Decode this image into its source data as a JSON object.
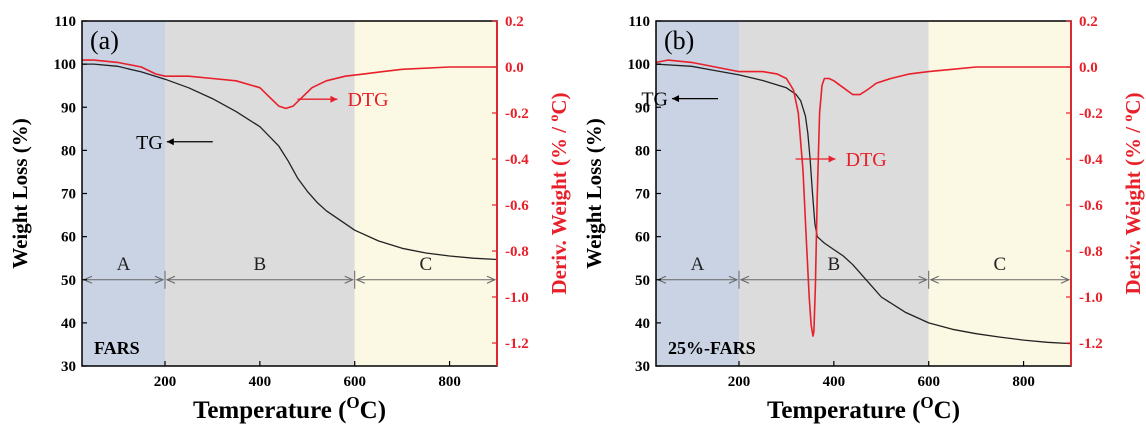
{
  "colors": {
    "tg": "#222222",
    "dtg": "#e8202a",
    "region_a": "#c9d3e4",
    "region_b": "#dcdcdc",
    "region_c": "#fbf8e3",
    "axis_left": "#000000",
    "axis_right": "#e8202a"
  },
  "chart_data": [
    {
      "type": "line",
      "panel_label": "(a)",
      "sample_label": "FARS",
      "xlabel": "Temperature (",
      "xlabel_sup": "O",
      "xlabel_end": "C)",
      "ylabel": "Weight Loss (%)",
      "y2label": "Deriv. Weight (% / ",
      "y2label_sup": "o",
      "y2label_end": "C)",
      "xlim": [
        25,
        900
      ],
      "ylim": [
        30,
        110
      ],
      "y2lim": [
        -1.3,
        0.2
      ],
      "xticks": [
        200,
        400,
        600,
        800
      ],
      "yticks": [
        30,
        40,
        50,
        60,
        70,
        80,
        90,
        100,
        110
      ],
      "y2ticks": [
        -1.2,
        -1.0,
        -0.8,
        -0.6,
        -0.4,
        -0.2,
        0.0,
        0.2
      ],
      "regions": [
        {
          "label": "A",
          "x0": 25,
          "x1": 200
        },
        {
          "label": "B",
          "x0": 200,
          "x1": 600
        },
        {
          "label": "C",
          "x0": 600,
          "x1": 900
        }
      ],
      "region_arrow_y": 50,
      "series": [
        {
          "name": "TG",
          "axis": "left",
          "x": [
            25,
            50,
            100,
            150,
            200,
            250,
            300,
            350,
            400,
            440,
            460,
            480,
            500,
            520,
            540,
            560,
            600,
            650,
            700,
            750,
            800,
            850,
            900
          ],
          "y": [
            100,
            100,
            99.5,
            98.2,
            96.5,
            94.5,
            92,
            89,
            85.5,
            81,
            77.5,
            73.5,
            70.5,
            68,
            66,
            64.5,
            61.5,
            59,
            57.3,
            56.2,
            55.5,
            55,
            54.7
          ]
        },
        {
          "name": "DTG",
          "axis": "right",
          "x": [
            25,
            50,
            100,
            150,
            180,
            200,
            250,
            300,
            350,
            400,
            420,
            440,
            455,
            470,
            490,
            510,
            540,
            580,
            620,
            700,
            800,
            900
          ],
          "y": [
            0.03,
            0.03,
            0.02,
            0.0,
            -0.03,
            -0.04,
            -0.04,
            -0.05,
            -0.06,
            -0.09,
            -0.13,
            -0.17,
            -0.18,
            -0.17,
            -0.13,
            -0.09,
            -0.06,
            -0.04,
            -0.03,
            -0.01,
            0.0,
            0.0
          ]
        }
      ],
      "annotations": [
        {
          "text": "TG",
          "series": "TG",
          "label_x": 305,
          "label_y": 82
        },
        {
          "text": "DTG",
          "series": "DTG",
          "label_x": 610,
          "label_y": -0.14
        }
      ]
    },
    {
      "type": "line",
      "panel_label": "(b)",
      "sample_label": "25%-FARS",
      "xlabel": "Temperature (",
      "xlabel_sup": "O",
      "xlabel_end": "C)",
      "ylabel": "Weight Loss (%)",
      "y2label": "Deriv. Weight (% / ",
      "y2label_sup": "o",
      "y2label_end": "C)",
      "xlim": [
        25,
        900
      ],
      "ylim": [
        30,
        110
      ],
      "y2lim": [
        -1.3,
        0.2
      ],
      "xticks": [
        200,
        400,
        600,
        800
      ],
      "yticks": [
        30,
        40,
        50,
        60,
        70,
        80,
        90,
        100,
        110
      ],
      "y2ticks": [
        -1.2,
        -1.0,
        -0.8,
        -0.6,
        -0.4,
        -0.2,
        0.0,
        0.2
      ],
      "regions": [
        {
          "label": "A",
          "x0": 25,
          "x1": 200
        },
        {
          "label": "B",
          "x0": 200,
          "x1": 600
        },
        {
          "label": "C",
          "x0": 600,
          "x1": 900
        }
      ],
      "region_arrow_y": 50,
      "series": [
        {
          "name": "TG",
          "axis": "left",
          "x": [
            25,
            100,
            150,
            200,
            250,
            300,
            320,
            330,
            340,
            345,
            350,
            355,
            360,
            365,
            370,
            380,
            400,
            420,
            440,
            460,
            480,
            500,
            550,
            600,
            650,
            700,
            750,
            800,
            850,
            900
          ],
          "y": [
            100,
            99.5,
            98.5,
            97.5,
            96.2,
            94.5,
            93,
            91.5,
            88,
            84,
            78,
            70,
            63,
            60,
            59.5,
            58.5,
            57,
            55.5,
            53.5,
            51,
            48.5,
            46,
            42.5,
            40,
            38.5,
            37.5,
            36.7,
            36,
            35.5,
            35.2
          ]
        },
        {
          "name": "DTG",
          "axis": "right",
          "x": [
            25,
            50,
            100,
            150,
            200,
            250,
            280,
            300,
            315,
            325,
            335,
            342,
            348,
            352,
            356,
            358,
            361,
            365,
            370,
            375,
            380,
            390,
            400,
            420,
            440,
            455,
            470,
            490,
            520,
            560,
            600,
            650,
            700,
            800,
            900
          ],
          "y": [
            0.02,
            0.03,
            0.02,
            0.0,
            -0.02,
            -0.02,
            -0.03,
            -0.05,
            -0.1,
            -0.2,
            -0.45,
            -0.75,
            -1.0,
            -1.12,
            -1.17,
            -1.15,
            -0.95,
            -0.55,
            -0.2,
            -0.08,
            -0.05,
            -0.05,
            -0.06,
            -0.09,
            -0.12,
            -0.12,
            -0.1,
            -0.07,
            -0.05,
            -0.03,
            -0.02,
            -0.01,
            0.0,
            0.0,
            0.0
          ]
        }
      ],
      "annotations": [
        {
          "text": "TG",
          "series": "TG",
          "label_x": 160,
          "label_y": 92
        },
        {
          "text": "DTG",
          "series": "DTG",
          "label_x": 450,
          "label_y": -0.4
        }
      ]
    }
  ]
}
